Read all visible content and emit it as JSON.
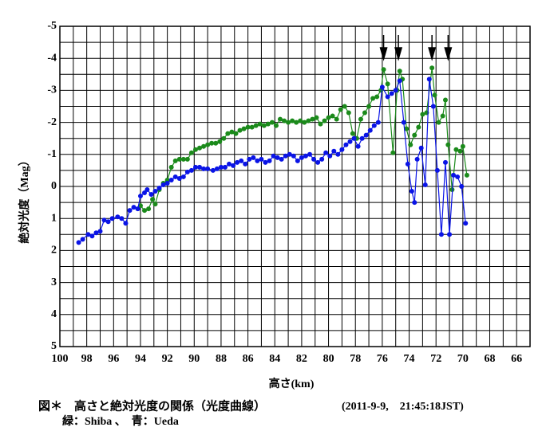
{
  "chart_data": {
    "type": "line",
    "x_label": "高さ(km)",
    "y_label": "絶対光度（Mag）",
    "caption": "図＊　高さと絶対光度の関係（光度曲線）",
    "caption_date": "(2011-9-9,　21:45:18JST)",
    "caption_legend": "緑：Shiba 、　青：Ueda",
    "xlim": [
      100,
      65
    ],
    "ylim": [
      -5,
      5
    ],
    "xticks": [
      100,
      98,
      96,
      94,
      92,
      90,
      88,
      86,
      84,
      82,
      80,
      78,
      76,
      74,
      72,
      70,
      68,
      66
    ],
    "yticks": [
      -5,
      -4,
      -3,
      -2,
      -1,
      0,
      1,
      2,
      3,
      4,
      5
    ],
    "xminor_ticks": [
      99,
      97,
      95,
      93,
      91,
      89,
      87,
      85,
      83,
      81,
      79,
      77,
      75,
      73,
      71,
      69,
      67,
      65
    ],
    "yminor_ticks": [
      -4.5,
      -3.5,
      -2.5,
      -1.5,
      -0.5,
      0.5,
      1.5,
      2.5,
      3.5,
      4.5
    ],
    "grid": true,
    "arrows_x": [
      75.9,
      74.8,
      72.3,
      71.1
    ],
    "series": [
      {
        "color": "#1b8a1b",
        "x": [
          94.0,
          93.7,
          93.4,
          93.1,
          92.9,
          92.6,
          92.3,
          92.0,
          91.7,
          91.4,
          91.1,
          90.8,
          90.5,
          90.2,
          89.9,
          89.6,
          89.3,
          89.0,
          88.7,
          88.4,
          88.1,
          87.8,
          87.5,
          87.2,
          86.9,
          86.6,
          86.3,
          86.0,
          85.7,
          85.4,
          85.1,
          84.8,
          84.5,
          84.2,
          83.9,
          83.6,
          83.3,
          83.0,
          82.7,
          82.4,
          82.1,
          81.8,
          81.5,
          81.2,
          80.9,
          80.6,
          80.3,
          80.0,
          79.7,
          79.4,
          79.1,
          78.8,
          78.5,
          78.2,
          77.9,
          77.6,
          77.3,
          77.0,
          76.7,
          76.4,
          76.1,
          75.9,
          75.6,
          75.2,
          74.9,
          74.7,
          74.5,
          74.2,
          73.9,
          73.6,
          73.3,
          73.0,
          72.7,
          72.3,
          72.1,
          71.8,
          71.5,
          71.3,
          71.1,
          70.8,
          70.5,
          70.2,
          70.0,
          69.7
        ],
        "values": [
          0.6,
          0.75,
          0.7,
          0.4,
          0.55,
          0.1,
          -0.1,
          -0.2,
          -0.6,
          -0.8,
          -0.85,
          -0.85,
          -0.85,
          -1.05,
          -1.15,
          -1.2,
          -1.25,
          -1.3,
          -1.35,
          -1.35,
          -1.4,
          -1.5,
          -1.65,
          -1.7,
          -1.65,
          -1.75,
          -1.8,
          -1.85,
          -1.85,
          -1.9,
          -1.95,
          -1.9,
          -1.95,
          -2.0,
          -1.9,
          -2.1,
          -2.05,
          -2.0,
          -2.05,
          -2.0,
          -2.05,
          -2.0,
          -2.05,
          -2.1,
          -2.15,
          -1.95,
          -2.05,
          -2.15,
          -2.2,
          -2.1,
          -2.4,
          -2.5,
          -2.3,
          -1.65,
          -1.5,
          -2.1,
          -2.3,
          -2.5,
          -2.75,
          -2.8,
          -3.0,
          -3.65,
          -3.2,
          -1.05,
          -3.0,
          -3.6,
          -3.35,
          -1.8,
          -1.3,
          -1.6,
          -1.85,
          -2.25,
          -2.3,
          -3.7,
          -2.85,
          -2.0,
          -2.2,
          -2.7,
          -1.3,
          0.1,
          -1.15,
          -1.1,
          -1.25,
          -0.35
        ]
      },
      {
        "color": "#0a14e6",
        "x": [
          98.6,
          98.3,
          97.9,
          97.6,
          97.3,
          97.0,
          96.7,
          96.4,
          96.1,
          95.7,
          95.4,
          95.1,
          94.8,
          94.5,
          94.2,
          94.0,
          93.7,
          93.5,
          93.2,
          92.9,
          92.6,
          92.3,
          92.0,
          91.7,
          91.4,
          91.1,
          90.8,
          90.5,
          90.2,
          89.9,
          89.6,
          89.3,
          89.0,
          88.6,
          88.3,
          88.0,
          87.7,
          87.4,
          87.1,
          86.8,
          86.5,
          86.2,
          85.9,
          85.6,
          85.3,
          85.0,
          84.7,
          84.4,
          84.1,
          83.8,
          83.5,
          83.2,
          82.9,
          82.6,
          82.3,
          82.0,
          81.7,
          81.4,
          81.1,
          80.8,
          80.5,
          80.2,
          79.9,
          79.6,
          79.3,
          79.0,
          78.7,
          78.4,
          78.1,
          77.8,
          77.5,
          77.2,
          76.9,
          76.6,
          76.3,
          76.0,
          75.6,
          75.3,
          75.0,
          74.7,
          74.4,
          74.1,
          73.8,
          73.6,
          73.4,
          73.1,
          72.8,
          72.5,
          72.2,
          71.9,
          71.6,
          71.3,
          71.0,
          70.7,
          70.4,
          70.1,
          69.8
        ],
        "values": [
          1.75,
          1.65,
          1.5,
          1.55,
          1.45,
          1.4,
          1.05,
          1.1,
          1.0,
          0.95,
          1.0,
          1.15,
          0.75,
          0.65,
          0.7,
          0.3,
          0.2,
          0.1,
          0.25,
          0.15,
          0.05,
          -0.05,
          -0.1,
          -0.2,
          -0.3,
          -0.25,
          -0.3,
          -0.45,
          -0.5,
          -0.6,
          -0.6,
          -0.55,
          -0.55,
          -0.5,
          -0.55,
          -0.6,
          -0.6,
          -0.7,
          -0.65,
          -0.75,
          -0.8,
          -0.7,
          -0.85,
          -0.9,
          -0.8,
          -0.85,
          -0.75,
          -0.8,
          -0.95,
          -0.9,
          -0.85,
          -0.95,
          -1.0,
          -0.95,
          -0.8,
          -0.9,
          -0.95,
          -1.0,
          -0.85,
          -0.75,
          -0.85,
          -1.05,
          -0.95,
          -1.1,
          -1.0,
          -1.15,
          -1.3,
          -1.4,
          -1.5,
          -1.25,
          -1.5,
          -1.6,
          -1.75,
          -1.9,
          -2.0,
          -3.1,
          -2.8,
          -2.9,
          -3.0,
          -3.3,
          -2.0,
          -0.7,
          0.15,
          0.5,
          -0.85,
          -1.2,
          -0.05,
          -3.35,
          -2.5,
          -0.5,
          1.5,
          -0.75,
          1.5,
          -0.35,
          -0.3,
          0.0,
          1.15
        ]
      }
    ]
  }
}
